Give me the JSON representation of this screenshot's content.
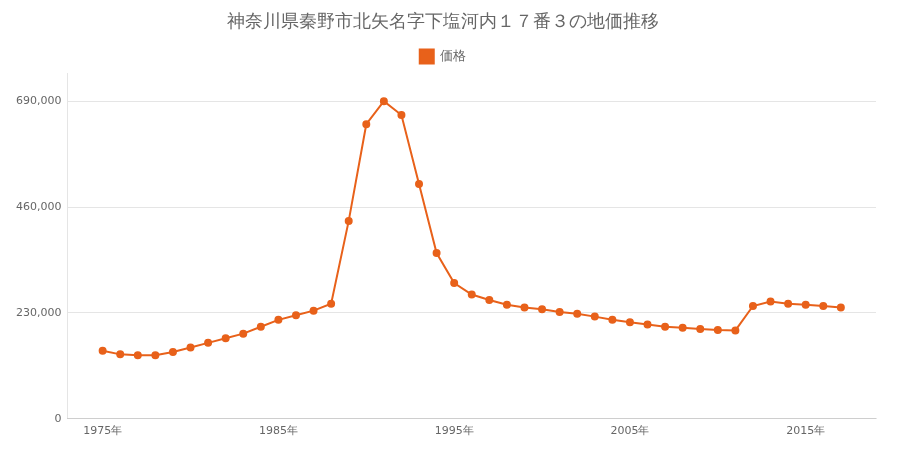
{
  "chart_data": {
    "type": "line",
    "title": "神奈川県秦野市北矢名字下塩河内１７番３の地価推移",
    "x": [
      1975,
      1976,
      1977,
      1978,
      1979,
      1980,
      1981,
      1982,
      1983,
      1984,
      1985,
      1986,
      1987,
      1988,
      1989,
      1990,
      1991,
      1992,
      1993,
      1994,
      1995,
      1996,
      1997,
      1998,
      1999,
      2000,
      2001,
      2002,
      2003,
      2004,
      2005,
      2006,
      2007,
      2008,
      2009,
      2010,
      2011,
      2012,
      2013,
      2014,
      2015,
      2016,
      2017
    ],
    "series": [
      {
        "name": "価格",
        "color": "#e8611a",
        "marker": "circle",
        "values": [
          148000,
          140000,
          138000,
          138000,
          145000,
          155000,
          165000,
          175000,
          185000,
          200000,
          215000,
          225000,
          235000,
          250000,
          430000,
          640000,
          690000,
          660000,
          510000,
          360000,
          295000,
          270000,
          258000,
          248000,
          242000,
          238000,
          232000,
          228000,
          222000,
          215000,
          210000,
          205000,
          200000,
          198000,
          195000,
          193000,
          192000,
          245000,
          255000,
          250000,
          248000,
          245000,
          242000
        ]
      }
    ],
    "xlim": [
      1973,
      2019
    ],
    "xticks": [
      {
        "value": 1975,
        "label": "1975年"
      },
      {
        "value": 1985,
        "label": "1985年"
      },
      {
        "value": 1995,
        "label": "1995年"
      },
      {
        "value": 2005,
        "label": "2005年"
      },
      {
        "value": 2015,
        "label": "2015年"
      }
    ],
    "ylim": [
      0,
      750000
    ],
    "yticks": [
      0,
      {
        "value": 230000,
        "label": "230,000"
      },
      {
        "value": 460000,
        "label": "460,000"
      },
      {
        "value": 690000,
        "label": "690,000"
      }
    ],
    "grid": "y",
    "legend": "top"
  }
}
